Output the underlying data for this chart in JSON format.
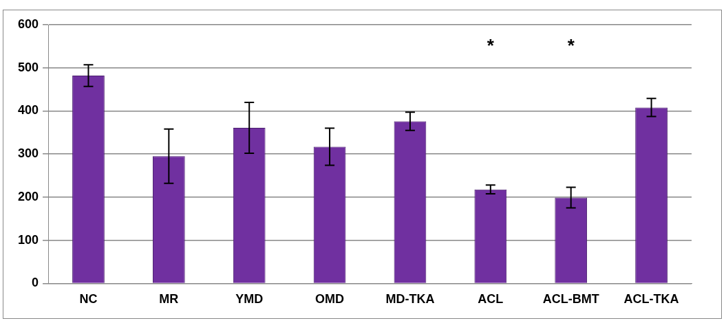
{
  "chart_data": {
    "type": "bar",
    "categories": [
      "NC",
      "MR",
      "YMD",
      "OMD",
      "MD-TKA",
      "ACL",
      "ACL-BMT",
      "ACL-TKA"
    ],
    "values": [
      482,
      295,
      361,
      317,
      376,
      218,
      199,
      408
    ],
    "errors": [
      25,
      63,
      59,
      43,
      21,
      10,
      24,
      21
    ],
    "color": "#7030a0",
    "ylim": [
      0,
      600
    ],
    "yticks": [
      0,
      100,
      200,
      300,
      400,
      500,
      600
    ],
    "grid": "y",
    "legend": false,
    "annotations": [
      "*",
      "*"
    ]
  }
}
